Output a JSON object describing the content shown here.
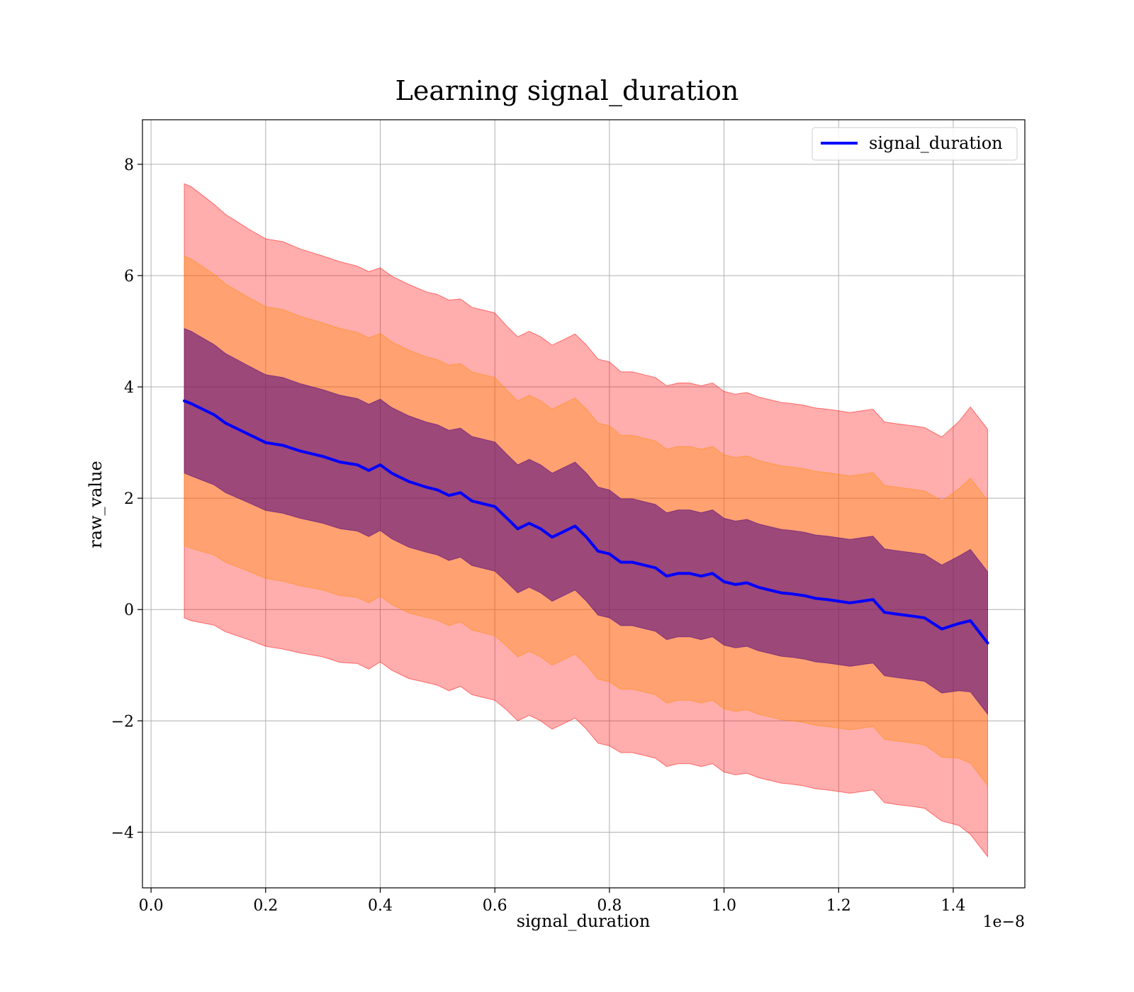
{
  "chart_data": {
    "type": "line",
    "title": "Learning signal_duration",
    "xlabel": "signal_duration",
    "ylabel": "raw_value",
    "x_offset_label": "1e−8",
    "xlim": [
      -0.015,
      1.525
    ],
    "ylim": [
      -5.0,
      8.8
    ],
    "x_ticks": [
      0.0,
      0.2,
      0.4,
      0.6,
      0.8,
      1.0,
      1.2,
      1.4
    ],
    "x_tick_labels": [
      "0.0",
      "0.2",
      "0.4",
      "0.6",
      "0.8",
      "1.0",
      "1.2",
      "1.4"
    ],
    "y_ticks": [
      -4,
      -2,
      0,
      2,
      4,
      6,
      8
    ],
    "y_tick_labels": [
      "−4",
      "−2",
      "0",
      "2",
      "4",
      "6",
      "8"
    ],
    "grid": true,
    "legend_position": "top-right",
    "colors": {
      "line": "#0000ff",
      "band_outer": "#ff0000",
      "band_middle": "#ff8c00",
      "band_inner": "#4b0082"
    },
    "series": [
      {
        "name": "signal_duration",
        "x": [
          0.058,
          0.07,
          0.09,
          0.11,
          0.13,
          0.15,
          0.17,
          0.2,
          0.23,
          0.26,
          0.3,
          0.33,
          0.36,
          0.38,
          0.4,
          0.42,
          0.45,
          0.48,
          0.5,
          0.52,
          0.54,
          0.56,
          0.58,
          0.6,
          0.62,
          0.64,
          0.66,
          0.68,
          0.7,
          0.72,
          0.74,
          0.76,
          0.78,
          0.8,
          0.82,
          0.84,
          0.86,
          0.88,
          0.9,
          0.92,
          0.94,
          0.96,
          0.98,
          1.0,
          1.02,
          1.04,
          1.06,
          1.08,
          1.1,
          1.12,
          1.14,
          1.16,
          1.18,
          1.2,
          1.22,
          1.24,
          1.26,
          1.28,
          1.3,
          1.33,
          1.35,
          1.38,
          1.41,
          1.43,
          1.46
        ],
        "values": [
          3.75,
          3.7,
          3.6,
          3.5,
          3.35,
          3.25,
          3.15,
          3.0,
          2.95,
          2.85,
          2.75,
          2.65,
          2.6,
          2.5,
          2.6,
          2.45,
          2.3,
          2.2,
          2.15,
          2.05,
          2.1,
          1.95,
          1.9,
          1.85,
          1.65,
          1.45,
          1.55,
          1.45,
          1.3,
          1.4,
          1.5,
          1.3,
          1.05,
          1.0,
          0.85,
          0.85,
          0.8,
          0.75,
          0.6,
          0.65,
          0.65,
          0.6,
          0.65,
          0.5,
          0.45,
          0.48,
          0.4,
          0.35,
          0.3,
          0.28,
          0.25,
          0.2,
          0.18,
          0.15,
          0.12,
          0.15,
          0.18,
          -0.05,
          -0.08,
          -0.12,
          -0.15,
          -0.35,
          -0.25,
          -0.2,
          -0.6
        ],
        "sigma": [
          1.3,
          1.3,
          1.28,
          1.26,
          1.25,
          1.24,
          1.23,
          1.22,
          1.22,
          1.21,
          1.2,
          1.2,
          1.19,
          1.19,
          1.18,
          1.18,
          1.18,
          1.17,
          1.17,
          1.17,
          1.16,
          1.16,
          1.16,
          1.16,
          1.15,
          1.15,
          1.15,
          1.15,
          1.15,
          1.15,
          1.15,
          1.15,
          1.15,
          1.15,
          1.14,
          1.14,
          1.14,
          1.14,
          1.14,
          1.14,
          1.14,
          1.14,
          1.14,
          1.14,
          1.14,
          1.14,
          1.14,
          1.14,
          1.14,
          1.14,
          1.14,
          1.14,
          1.14,
          1.14,
          1.14,
          1.14,
          1.14,
          1.14,
          1.14,
          1.14,
          1.14,
          1.15,
          1.21,
          1.28,
          1.28
        ]
      }
    ],
    "bands": [
      {
        "sigmas": 1,
        "color": "band_inner",
        "opacity": 0.55
      },
      {
        "sigmas": 2,
        "color": "band_middle",
        "opacity": 0.35
      },
      {
        "sigmas": 3,
        "color": "band_outer",
        "opacity": 0.32
      }
    ]
  }
}
